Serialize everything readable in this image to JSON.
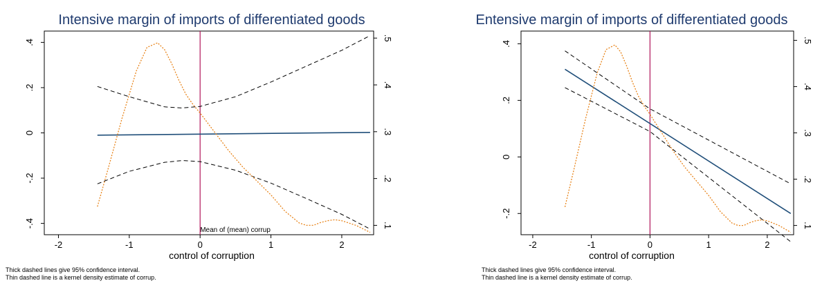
{
  "colors": {
    "fit": "#1f4e79",
    "ci": "#000000",
    "density": "#e8841a",
    "mean_line": "#b0145a",
    "title": "#1e3a6e"
  },
  "chart_data": [
    {
      "type": "line",
      "title": "Intensive margin of imports of differentiated goods",
      "xlabel": "control of corruption",
      "xlim": [
        -2.2,
        2.45
      ],
      "ylim": [
        -0.45,
        0.45
      ],
      "y2lim": [
        0.08,
        0.515
      ],
      "xticks": [
        -2,
        -1,
        0,
        1,
        2
      ],
      "xtick_labels": [
        "-2",
        "-1",
        "0",
        "1",
        "2"
      ],
      "yticks": [
        -0.4,
        -0.2,
        0,
        0.2,
        0.4
      ],
      "ytick_labels": [
        "-.4",
        "-.2",
        "0",
        ".2",
        ".4"
      ],
      "y2ticks": [
        0.1,
        0.2,
        0.3,
        0.4,
        0.5
      ],
      "y2tick_labels": [
        ".1",
        ".2",
        ".3",
        ".4",
        ".5"
      ],
      "mean_x": 0,
      "mean_label": "Mean of (mean) corrup",
      "notes": [
        "Thick dashed lines give 95% confidence interval.",
        "Thin dashed line is a kernel density estimate of corrup."
      ],
      "series": [
        {
          "role": "fit",
          "x": [
            -1.45,
            2.4
          ],
          "y": [
            -0.01,
            0.002
          ]
        },
        {
          "role": "ci_upper",
          "x": [
            -1.45,
            -1.0,
            -0.5,
            -0.25,
            0.0,
            0.5,
            1.0,
            1.5,
            2.0,
            2.4
          ],
          "y": [
            0.205,
            0.16,
            0.115,
            0.11,
            0.117,
            0.16,
            0.225,
            0.295,
            0.365,
            0.43
          ]
        },
        {
          "role": "ci_lower",
          "x": [
            -1.45,
            -1.0,
            -0.5,
            -0.25,
            0.0,
            0.5,
            1.0,
            1.5,
            2.0,
            2.4
          ],
          "y": [
            -0.225,
            -0.17,
            -0.13,
            -0.122,
            -0.127,
            -0.165,
            -0.222,
            -0.29,
            -0.36,
            -0.425
          ]
        },
        {
          "role": "density",
          "x": [
            -1.45,
            -1.3,
            -1.1,
            -0.9,
            -0.75,
            -0.6,
            -0.5,
            -0.4,
            -0.3,
            -0.2,
            -0.1,
            0.0,
            0.2,
            0.4,
            0.6,
            0.8,
            1.0,
            1.2,
            1.4,
            1.5,
            1.6,
            1.7,
            1.8,
            1.9,
            2.0,
            2.2,
            2.4
          ],
          "y": [
            0.14,
            0.22,
            0.33,
            0.43,
            0.48,
            0.49,
            0.475,
            0.445,
            0.41,
            0.38,
            0.358,
            0.34,
            0.3,
            0.26,
            0.225,
            0.195,
            0.165,
            0.13,
            0.105,
            0.1,
            0.1,
            0.106,
            0.11,
            0.112,
            0.11,
            0.1,
            0.085
          ]
        }
      ]
    },
    {
      "type": "line",
      "title": "Entensive margin of imports of differentiated goods",
      "xlabel": "control of corruption",
      "xlim": [
        -2.2,
        2.45
      ],
      "ylim": [
        -0.275,
        0.445
      ],
      "y2lim": [
        0.08,
        0.52
      ],
      "xticks": [
        -2,
        -1,
        0,
        1,
        2
      ],
      "xtick_labels": [
        "-2",
        "-1",
        "0",
        "1",
        "2"
      ],
      "yticks": [
        -0.2,
        0,
        0.2,
        0.4
      ],
      "ytick_labels": [
        "-.2",
        "0",
        ".2",
        ".4"
      ],
      "y2ticks": [
        0.1,
        0.2,
        0.3,
        0.4,
        0.5
      ],
      "y2tick_labels": [
        ".1",
        ".2",
        ".3",
        ".4",
        ".5"
      ],
      "mean_x": 0,
      "mean_label": "",
      "notes": [
        "Thick dashed lines give 95% confidence interval.",
        "Thin dashed line is a kernel density estimate of corrup."
      ],
      "series": [
        {
          "role": "fit",
          "x": [
            -1.45,
            2.4
          ],
          "y": [
            0.31,
            -0.2
          ]
        },
        {
          "role": "ci_upper",
          "x": [
            -1.45,
            0.0,
            2.4
          ],
          "y": [
            0.375,
            0.17,
            -0.095
          ]
        },
        {
          "role": "ci_lower",
          "x": [
            -1.45,
            0.0,
            2.4
          ],
          "y": [
            0.245,
            0.09,
            -0.3
          ]
        },
        {
          "role": "density",
          "x": [
            -1.45,
            -1.3,
            -1.1,
            -0.9,
            -0.75,
            -0.6,
            -0.5,
            -0.4,
            -0.3,
            -0.2,
            -0.1,
            0.0,
            0.2,
            0.4,
            0.6,
            0.8,
            1.0,
            1.2,
            1.4,
            1.5,
            1.6,
            1.7,
            1.8,
            1.9,
            2.0,
            2.2,
            2.4
          ],
          "y": [
            0.14,
            0.22,
            0.33,
            0.43,
            0.48,
            0.49,
            0.475,
            0.445,
            0.41,
            0.38,
            0.358,
            0.34,
            0.3,
            0.26,
            0.225,
            0.195,
            0.165,
            0.13,
            0.105,
            0.1,
            0.1,
            0.106,
            0.11,
            0.112,
            0.11,
            0.1,
            0.085
          ]
        }
      ]
    }
  ]
}
